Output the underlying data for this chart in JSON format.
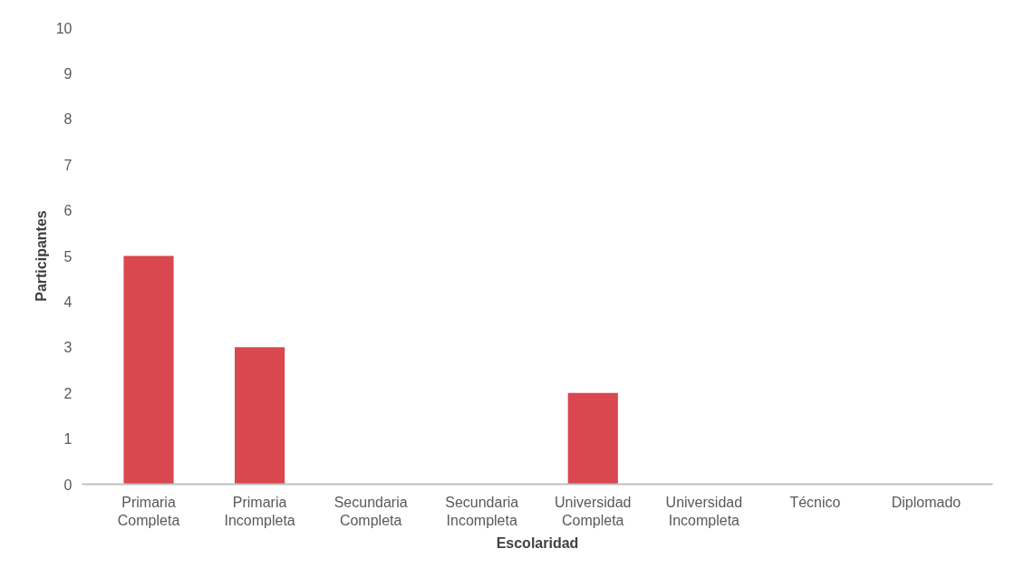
{
  "chart_data": {
    "type": "bar",
    "xlabel": "Escolaridad",
    "ylabel": "Participantes",
    "categories": [
      "Primaria Completa",
      "Primaria Incompleta",
      "Secundaria Completa",
      "Secundaria Incompleta",
      "Universidad Completa",
      "Universidad Incompleta",
      "Técnico",
      "Diplomado"
    ],
    "values": [
      5,
      3,
      0,
      0,
      2,
      0,
      0,
      0
    ],
    "color": "#d9474f",
    "ylim": [
      0,
      10
    ],
    "yticks": [
      0,
      1,
      2,
      3,
      4,
      5,
      6,
      7,
      8,
      9,
      10
    ],
    "grid": false
  }
}
